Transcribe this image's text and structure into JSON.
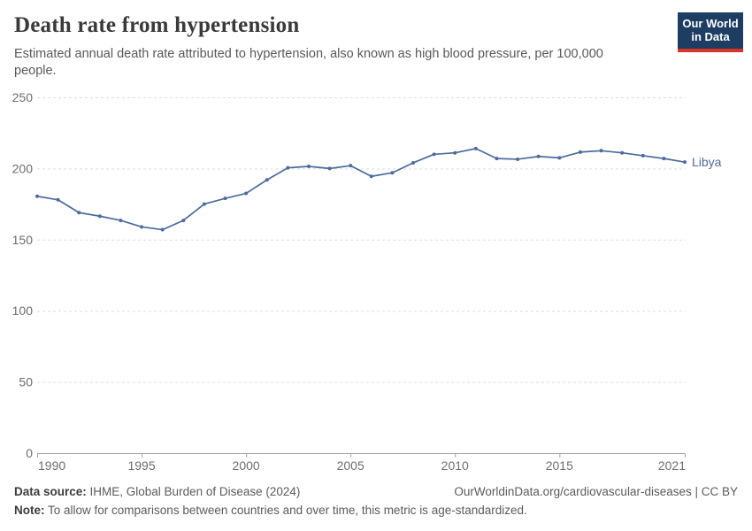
{
  "header": {
    "title": "Death rate from hypertension",
    "subtitle": "Estimated annual death rate attributed to hypertension, also known as high blood pressure, per 100,000 people.",
    "logo_line1": "Our World",
    "logo_line2": "in Data"
  },
  "chart_data": {
    "type": "line",
    "title": "Death rate from hypertension",
    "xlabel": "",
    "ylabel": "",
    "x": [
      1990,
      1991,
      1992,
      1993,
      1994,
      1995,
      1996,
      1997,
      1998,
      1999,
      2000,
      2001,
      2002,
      2003,
      2004,
      2005,
      2006,
      2007,
      2008,
      2009,
      2010,
      2011,
      2012,
      2013,
      2014,
      2015,
      2016,
      2017,
      2018,
      2019,
      2020,
      2021
    ],
    "series": [
      {
        "name": "Libya",
        "color": "#4c6b9d",
        "values": [
          180.5,
          178,
          169,
          166.5,
          163.5,
          159,
          157,
          163.5,
          175,
          179,
          182.5,
          192,
          200.5,
          201.5,
          200,
          202,
          194.5,
          197,
          204,
          210,
          211,
          214,
          207,
          206.5,
          208.5,
          207.5,
          211.5,
          212.5,
          211,
          209,
          207,
          204.5
        ]
      }
    ],
    "xlim": [
      1990,
      2021
    ],
    "ylim": [
      0,
      250
    ],
    "xticks": [
      1990,
      1995,
      2000,
      2005,
      2010,
      2015,
      2021
    ],
    "yticks": [
      0,
      50,
      100,
      150,
      200,
      250
    ],
    "grid": "horizontal-dashed",
    "legend_position": "end-of-line-label",
    "end_label": "Libya"
  },
  "footer": {
    "datasource_label": "Data source:",
    "datasource_value": " IHME, Global Burden of Disease (2024)",
    "link": "OurWorldinData.org/cardiovascular-diseases | CC BY",
    "note_label": "Note:",
    "note_value": " To allow for comparisons between countries and over time, this metric is age-standardized."
  },
  "colors": {
    "line": "#4c6b9d",
    "gridline": "#dddddd",
    "axis": "#a5a5a5",
    "tick_text": "#6e6e6e",
    "logo_navy": "#1d3d63",
    "logo_red": "#d8352c"
  }
}
